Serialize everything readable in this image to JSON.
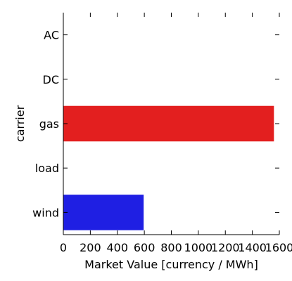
{
  "chart_data": {
    "type": "bar",
    "orientation": "horizontal",
    "categories": [
      "AC",
      "DC",
      "gas",
      "load",
      "wind"
    ],
    "values": [
      0,
      0,
      1560,
      0,
      595
    ],
    "bar_colors": [
      "#e31a1c",
      "#e31a1c",
      "#e31f1f",
      "#1f1fe3",
      "#1f1fe3"
    ],
    "xlabel": "Market Value [currency / MWh]",
    "ylabel": "carrier",
    "xlim": [
      0,
      1600
    ],
    "xticks": [
      "0",
      "200",
      "400",
      "600",
      "800",
      "1000",
      "1200",
      "1400",
      "1600"
    ],
    "grid": false,
    "legend": "none"
  }
}
